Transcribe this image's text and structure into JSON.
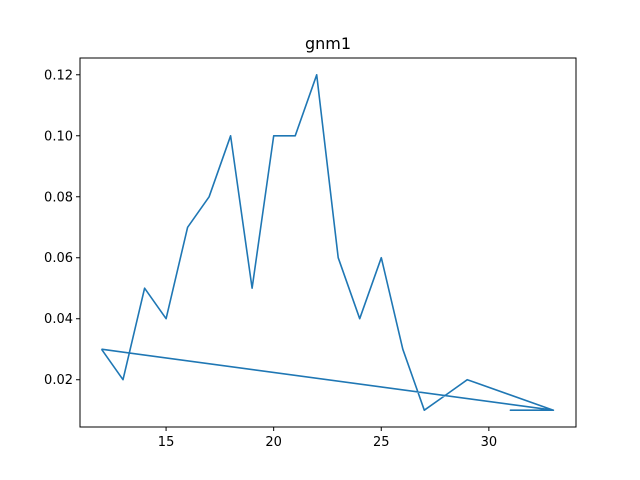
{
  "chart_data": {
    "type": "line",
    "title": "gnm1",
    "xlabel": "",
    "ylabel": "",
    "xlim": [
      11.0,
      34.05
    ],
    "ylim": [
      0.0045,
      0.1255
    ],
    "xticks": [
      15,
      20,
      25,
      30
    ],
    "xtick_labels": [
      "15",
      "20",
      "25",
      "30"
    ],
    "yticks": [
      0.02,
      0.04,
      0.06,
      0.08,
      0.1,
      0.12
    ],
    "ytick_labels": [
      "0.02",
      "0.04",
      "0.06",
      "0.08",
      "0.10",
      "0.12"
    ],
    "grid": false,
    "legend": "none",
    "series": [
      {
        "color": "#1f77b4",
        "x": [
          12,
          13,
          14,
          15,
          16,
          17,
          18,
          19,
          20,
          21,
          22,
          23,
          24,
          25,
          26,
          27,
          28,
          29,
          33,
          31,
          33,
          12
        ],
        "y": [
          0.03,
          0.02,
          0.05,
          0.04,
          0.07,
          0.08,
          0.1,
          0.05,
          0.1,
          0.1,
          0.12,
          0.06,
          0.04,
          0.06,
          0.03,
          0.01,
          0.015,
          0.02,
          0.01,
          0.01,
          0.01,
          0.03
        ]
      }
    ]
  }
}
